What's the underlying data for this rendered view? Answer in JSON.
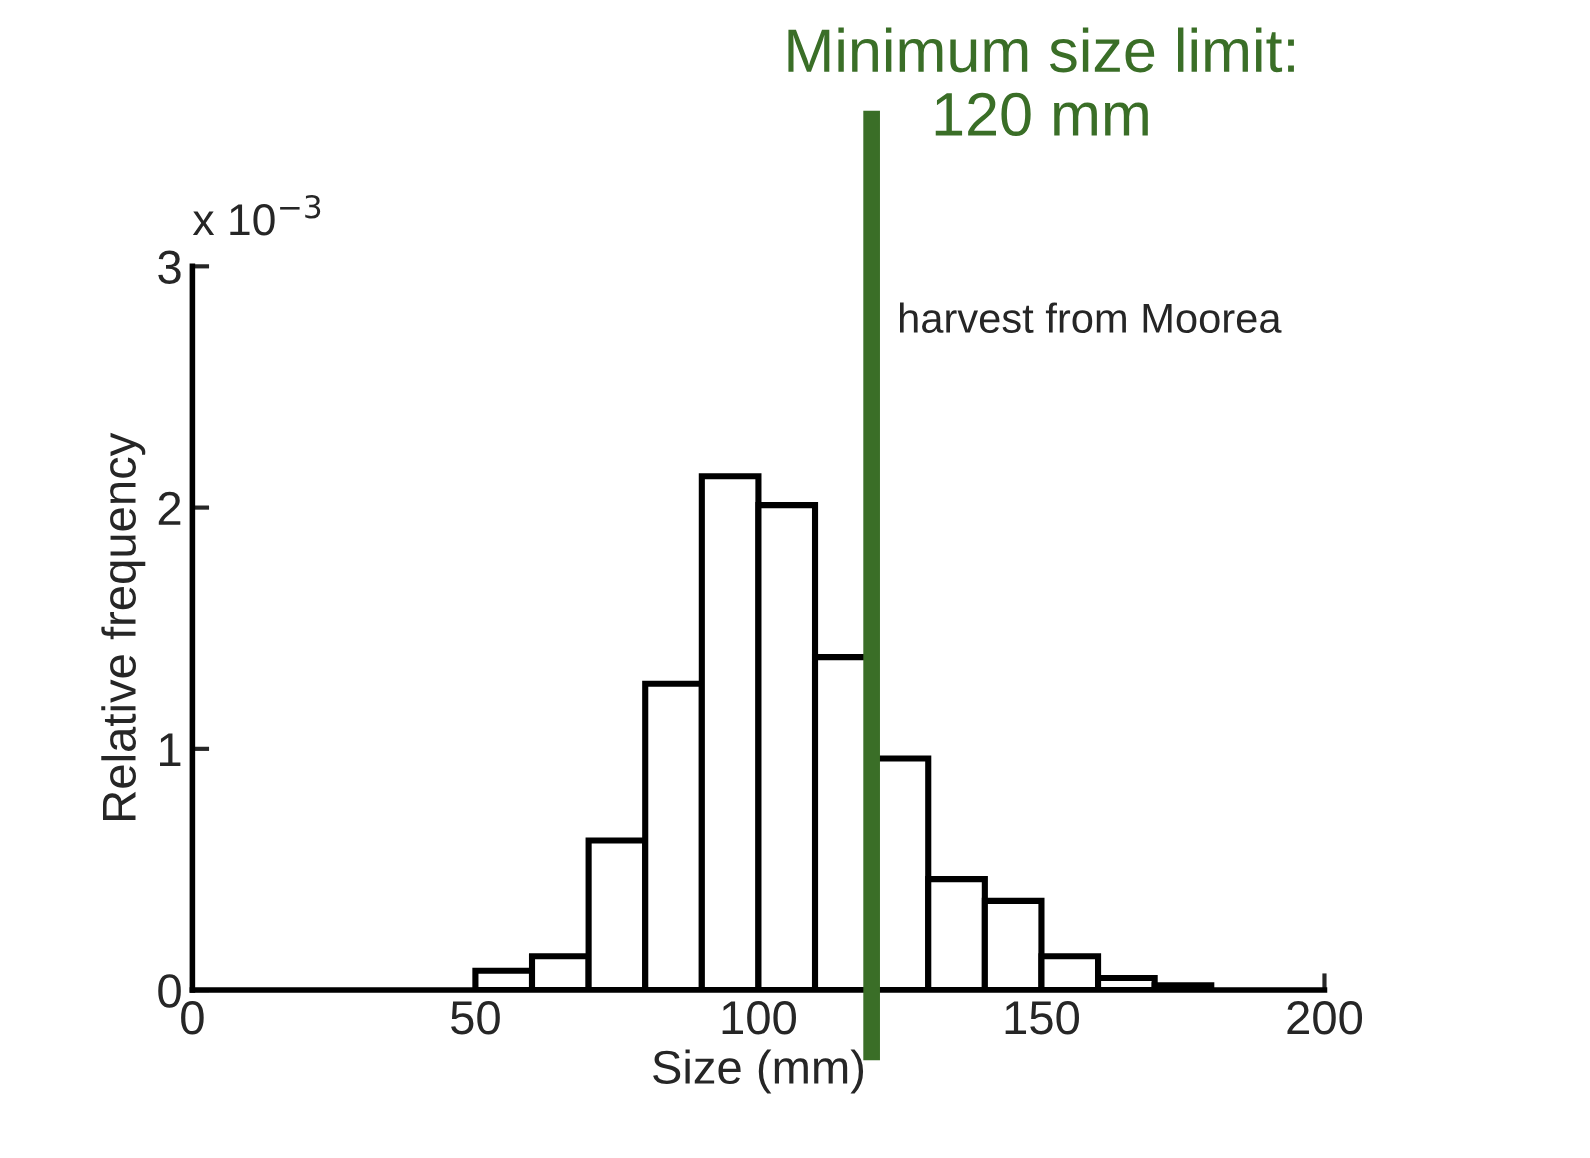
{
  "chart_data": {
    "type": "histogram",
    "xlabel": "Size (mm)",
    "ylabel": "Relative frequency",
    "bins": [
      50,
      60,
      70,
      80,
      90,
      100,
      110,
      120,
      130,
      140,
      150,
      160,
      170,
      180
    ],
    "values": [
      0.08,
      0.14,
      0.62,
      1.27,
      2.13,
      2.01,
      1.38,
      0.96,
      0.46,
      0.37,
      0.14,
      0.05,
      0.02
    ],
    "color": "#ffffff",
    "xlim": [
      0,
      200
    ],
    "xticks": [
      0,
      50,
      100,
      150,
      200
    ],
    "ylim": [
      0,
      3
    ],
    "yticks": [
      0,
      1,
      2,
      3
    ],
    "ref_lines": [
      {
        "axis": "x",
        "value": 120,
        "label": "Minimum size limit:\n120 mm",
        "color": "#3a6e27",
        "line_style": "solid"
      }
    ],
    "annotations": [
      "x 10$^{−3}$",
      "harvest from Moorea"
    ],
    "grid": false,
    "legend": false
  }
}
